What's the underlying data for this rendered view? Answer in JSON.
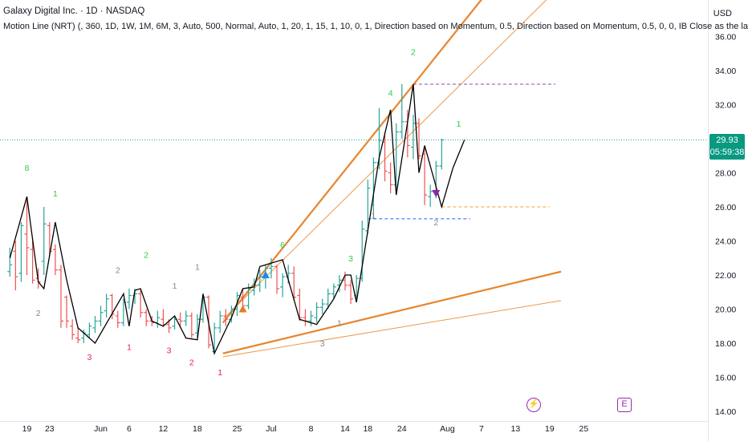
{
  "header": {
    "title": "Galaxy Digital Inc. · 1D · NASDAQ",
    "indicator": "Motion Line (NRT) (, 360, 1D, 1W, 1M, 6M, 3, Auto, 500, Normal, Auto, 1, 20, 1, 15, 1, 10, 0, 1, Direction based on Momentum, 0.5, Direction based on Momentum, 0.5, 0, 0, IB Close as the last Close)"
  },
  "currency": "USD",
  "price_badge": {
    "price": "29.93",
    "countdown": "05:59:38"
  },
  "events": {
    "earnings_icon": "lightning-icon",
    "dividend_icon": "dividend-e-icon"
  },
  "colors": {
    "up": "#26a69a",
    "down": "#ef5350",
    "motion_line": "#000000",
    "trend": "#e67e22",
    "label_green": "#2ecc40",
    "label_red": "#e91e63",
    "label_gray": "#888888",
    "purple_dash": "#8e44ad",
    "blue_dash": "#2962ff",
    "orange_dash": "#f0a030"
  },
  "chart_data": {
    "type": "ohlc",
    "y_ticks": [
      "14.00",
      "16.00",
      "18.00",
      "20.00",
      "22.00",
      "24.00",
      "26.00",
      "28.00",
      "30.00",
      "32.00",
      "34.00",
      "36.00"
    ],
    "ylim": [
      13.5,
      37
    ],
    "x_labels": [
      {
        "label": "19",
        "day": 1
      },
      {
        "label": "23",
        "day": 5
      },
      {
        "label": "Jun",
        "day": 14
      },
      {
        "label": "6",
        "day": 19
      },
      {
        "label": "12",
        "day": 25
      },
      {
        "label": "18",
        "day": 31
      },
      {
        "label": "25",
        "day": 38
      },
      {
        "label": "Jul",
        "day": 44
      },
      {
        "label": "8",
        "day": 51
      },
      {
        "label": "14",
        "day": 57
      },
      {
        "label": "18",
        "day": 61
      },
      {
        "label": "24",
        "day": 67
      },
      {
        "label": "Aug",
        "day": 75
      },
      {
        "label": "7",
        "day": 81
      },
      {
        "label": "13",
        "day": 87
      },
      {
        "label": "19",
        "day": 93
      },
      {
        "label": "25",
        "day": 99
      }
    ],
    "bars": [
      {
        "d": -2,
        "o": 22.2,
        "h": 23.6,
        "l": 21.9,
        "c": 22.6
      },
      {
        "d": -1,
        "o": 23.4,
        "h": 24.0,
        "l": 21.1,
        "c": 21.9
      },
      {
        "d": 0,
        "o": 22.1,
        "h": 25.1,
        "l": 21.6,
        "c": 24.9
      },
      {
        "d": 1,
        "o": 24.4,
        "h": 26.6,
        "l": 22.0,
        "c": 23.6
      },
      {
        "d": 2,
        "o": 23.5,
        "h": 24.0,
        "l": 21.5,
        "c": 21.7
      },
      {
        "d": 3,
        "o": 21.8,
        "h": 22.4,
        "l": 21.2,
        "c": 21.6
      },
      {
        "d": 4,
        "o": 22.8,
        "h": 26.0,
        "l": 22.0,
        "c": 25.0
      },
      {
        "d": 5,
        "o": 24.9,
        "h": 25.1,
        "l": 23.1,
        "c": 23.4
      },
      {
        "d": 6,
        "o": 23.5,
        "h": 23.8,
        "l": 22.0,
        "c": 22.3
      },
      {
        "d": 7,
        "o": 22.3,
        "h": 22.6,
        "l": 18.9,
        "c": 19.3
      },
      {
        "d": 8,
        "o": 20.7,
        "h": 20.8,
        "l": 18.9,
        "c": 19.3
      },
      {
        "d": 9,
        "o": 19.0,
        "h": 19.4,
        "l": 18.2,
        "c": 18.5
      },
      {
        "d": 10,
        "o": 18.3,
        "h": 18.9,
        "l": 18.0,
        "c": 18.2
      },
      {
        "d": 11,
        "o": 18.3,
        "h": 18.8,
        "l": 18.0,
        "c": 18.6
      },
      {
        "d": 12,
        "o": 18.5,
        "h": 19.2,
        "l": 18.3,
        "c": 19.0
      },
      {
        "d": 13,
        "o": 18.9,
        "h": 19.6,
        "l": 18.6,
        "c": 19.3
      },
      {
        "d": 14,
        "o": 19.3,
        "h": 20.2,
        "l": 19.0,
        "c": 19.8
      },
      {
        "d": 15,
        "o": 19.9,
        "h": 20.9,
        "l": 19.5,
        "c": 20.6
      },
      {
        "d": 16,
        "o": 20.8,
        "h": 20.9,
        "l": 19.4,
        "c": 19.7
      },
      {
        "d": 17,
        "o": 19.6,
        "h": 19.9,
        "l": 18.9,
        "c": 19.2
      },
      {
        "d": 18,
        "o": 19.2,
        "h": 20.6,
        "l": 19.0,
        "c": 20.4
      },
      {
        "d": 19,
        "o": 20.4,
        "h": 21.2,
        "l": 20.0,
        "c": 20.8
      },
      {
        "d": 20,
        "o": 20.8,
        "h": 21.2,
        "l": 20.3,
        "c": 20.9
      },
      {
        "d": 21,
        "o": 20.9,
        "h": 21.1,
        "l": 19.5,
        "c": 19.8
      },
      {
        "d": 22,
        "o": 19.8,
        "h": 20.0,
        "l": 19.0,
        "c": 19.3
      },
      {
        "d": 23,
        "o": 19.3,
        "h": 19.6,
        "l": 19.0,
        "c": 19.2
      },
      {
        "d": 24,
        "o": 19.2,
        "h": 19.9,
        "l": 18.9,
        "c": 19.5
      },
      {
        "d": 25,
        "o": 19.4,
        "h": 20.0,
        "l": 19.0,
        "c": 19.1
      },
      {
        "d": 26,
        "o": 19.1,
        "h": 19.4,
        "l": 18.6,
        "c": 18.9
      },
      {
        "d": 27,
        "o": 19.0,
        "h": 19.6,
        "l": 18.8,
        "c": 19.4
      },
      {
        "d": 28,
        "o": 19.4,
        "h": 19.8,
        "l": 19.0,
        "c": 19.3
      },
      {
        "d": 29,
        "o": 19.3,
        "h": 19.9,
        "l": 19.0,
        "c": 19.6
      },
      {
        "d": 30,
        "o": 19.6,
        "h": 19.8,
        "l": 18.3,
        "c": 18.5
      },
      {
        "d": 31,
        "o": 18.6,
        "h": 19.7,
        "l": 18.3,
        "c": 19.4
      },
      {
        "d": 32,
        "o": 19.4,
        "h": 20.9,
        "l": 19.2,
        "c": 20.7
      },
      {
        "d": 33,
        "o": 20.7,
        "h": 20.8,
        "l": 17.7,
        "c": 17.9
      },
      {
        "d": 34,
        "o": 17.5,
        "h": 19.2,
        "l": 17.4,
        "c": 18.9
      },
      {
        "d": 35,
        "o": 18.9,
        "h": 19.9,
        "l": 18.6,
        "c": 19.6
      },
      {
        "d": 36,
        "o": 19.6,
        "h": 20.0,
        "l": 19.0,
        "c": 19.4
      },
      {
        "d": 37,
        "o": 19.4,
        "h": 20.2,
        "l": 19.2,
        "c": 20.0
      },
      {
        "d": 38,
        "o": 20.0,
        "h": 21.0,
        "l": 19.6,
        "c": 20.8
      },
      {
        "d": 39,
        "o": 20.7,
        "h": 21.2,
        "l": 19.8,
        "c": 20.2
      },
      {
        "d": 40,
        "o": 20.2,
        "h": 21.5,
        "l": 20.0,
        "c": 21.2
      },
      {
        "d": 41,
        "o": 21.1,
        "h": 21.8,
        "l": 20.8,
        "c": 21.4
      },
      {
        "d": 42,
        "o": 21.4,
        "h": 22.3,
        "l": 21.0,
        "c": 21.9
      },
      {
        "d": 43,
        "o": 21.9,
        "h": 22.6,
        "l": 21.2,
        "c": 22.4
      },
      {
        "d": 44,
        "o": 22.4,
        "h": 23.0,
        "l": 21.8,
        "c": 22.5
      },
      {
        "d": 45,
        "o": 22.5,
        "h": 22.6,
        "l": 20.9,
        "c": 21.2
      },
      {
        "d": 46,
        "o": 21.3,
        "h": 22.1,
        "l": 20.7,
        "c": 21.9
      },
      {
        "d": 47,
        "o": 21.9,
        "h": 22.6,
        "l": 21.5,
        "c": 22.1
      },
      {
        "d": 48,
        "o": 22.1,
        "h": 22.5,
        "l": 20.5,
        "c": 20.7
      },
      {
        "d": 49,
        "o": 20.8,
        "h": 21.2,
        "l": 19.3,
        "c": 19.5
      },
      {
        "d": 50,
        "o": 19.5,
        "h": 20.0,
        "l": 19.0,
        "c": 19.3
      },
      {
        "d": 51,
        "o": 19.3,
        "h": 19.9,
        "l": 19.0,
        "c": 19.6
      },
      {
        "d": 52,
        "o": 19.5,
        "h": 20.4,
        "l": 19.2,
        "c": 20.1
      },
      {
        "d": 53,
        "o": 20.1,
        "h": 20.6,
        "l": 19.7,
        "c": 20.3
      },
      {
        "d": 54,
        "o": 20.3,
        "h": 21.2,
        "l": 20.0,
        "c": 20.9
      },
      {
        "d": 55,
        "o": 20.9,
        "h": 21.5,
        "l": 20.6,
        "c": 21.3
      },
      {
        "d": 56,
        "o": 21.4,
        "h": 22.0,
        "l": 21.0,
        "c": 21.7
      },
      {
        "d": 57,
        "o": 21.7,
        "h": 22.2,
        "l": 21.1,
        "c": 21.4
      },
      {
        "d": 58,
        "o": 21.4,
        "h": 21.7,
        "l": 20.3,
        "c": 20.6
      },
      {
        "d": 59,
        "o": 20.8,
        "h": 22.0,
        "l": 20.6,
        "c": 21.8
      },
      {
        "d": 60,
        "o": 21.8,
        "h": 25.2,
        "l": 21.6,
        "c": 24.7
      },
      {
        "d": 61,
        "o": 24.6,
        "h": 27.6,
        "l": 24.4,
        "c": 27.1
      },
      {
        "d": 62,
        "o": 26.1,
        "h": 28.9,
        "l": 25.3,
        "c": 28.6
      },
      {
        "d": 63,
        "o": 28.6,
        "h": 31.8,
        "l": 28.2,
        "c": 29.9
      },
      {
        "d": 64,
        "o": 29.8,
        "h": 30.4,
        "l": 27.5,
        "c": 28.1
      },
      {
        "d": 65,
        "o": 28.0,
        "h": 28.6,
        "l": 26.8,
        "c": 27.3
      },
      {
        "d": 66,
        "o": 27.3,
        "h": 30.9,
        "l": 27.0,
        "c": 30.4
      },
      {
        "d": 67,
        "o": 30.4,
        "h": 33.2,
        "l": 30.0,
        "c": 31.0
      },
      {
        "d": 68,
        "o": 31.0,
        "h": 31.7,
        "l": 28.9,
        "c": 29.6
      },
      {
        "d": 69,
        "o": 29.5,
        "h": 31.4,
        "l": 28.8,
        "c": 30.9
      },
      {
        "d": 70,
        "o": 30.9,
        "h": 31.2,
        "l": 28.8,
        "c": 29.0
      },
      {
        "d": 71,
        "o": 29.1,
        "h": 29.5,
        "l": 26.1,
        "c": 26.7
      },
      {
        "d": 72,
        "o": 26.6,
        "h": 27.3,
        "l": 26.0,
        "c": 26.9
      },
      {
        "d": 73,
        "o": 26.9,
        "h": 28.7,
        "l": 26.5,
        "c": 28.4
      },
      {
        "d": 74,
        "o": 28.4,
        "h": 30.0,
        "l": 28.2,
        "c": 29.93
      }
    ],
    "motion_line": [
      [
        -2,
        23.0
      ],
      [
        1,
        26.6
      ],
      [
        3,
        21.6
      ],
      [
        4,
        21.2
      ],
      [
        6,
        25.1
      ],
      [
        8,
        21.7
      ],
      [
        10,
        18.9
      ],
      [
        13,
        18.0
      ],
      [
        18,
        20.9
      ],
      [
        19,
        19.0
      ],
      [
        20,
        21.1
      ],
      [
        21,
        21.2
      ],
      [
        23,
        19.3
      ],
      [
        25,
        19.0
      ],
      [
        27,
        19.6
      ],
      [
        29,
        18.3
      ],
      [
        31,
        18.2
      ],
      [
        32,
        20.9
      ],
      [
        34,
        17.4
      ],
      [
        37,
        19.5
      ],
      [
        39,
        21.2
      ],
      [
        41,
        21.3
      ],
      [
        42,
        22.5
      ],
      [
        46,
        22.9
      ],
      [
        49,
        19.4
      ],
      [
        52,
        19.1
      ],
      [
        55,
        20.6
      ],
      [
        57,
        22.0
      ],
      [
        58,
        22.0
      ],
      [
        59,
        20.4
      ],
      [
        61,
        24.6
      ],
      [
        63,
        28.9
      ],
      [
        65,
        31.7
      ],
      [
        66,
        26.7
      ],
      [
        68,
        31.0
      ],
      [
        69,
        33.2
      ],
      [
        70,
        28.0
      ],
      [
        71,
        29.6
      ],
      [
        74,
        26.0
      ],
      [
        76,
        28.3
      ],
      [
        78,
        29.93
      ]
    ],
    "trend_lines": [
      {
        "from": [
          35.5,
          19.2
        ],
        "to": [
          95,
          44.0
        ],
        "width": 2
      },
      {
        "from": [
          35.5,
          17.4
        ],
        "to": [
          95,
          22.2
        ],
        "width": 2
      },
      {
        "from": [
          35.5,
          19.4
        ],
        "to": [
          95,
          39.0
        ],
        "width": 1
      },
      {
        "from": [
          35.5,
          17.2
        ],
        "to": [
          95,
          20.5
        ],
        "width": 1
      }
    ],
    "levels": [
      {
        "y": 33.2,
        "from": 69,
        "to": 94,
        "color": "purple"
      },
      {
        "y": 25.3,
        "from": 61,
        "to": 79,
        "color": "blue"
      },
      {
        "y": 26.0,
        "from": 74,
        "to": 93,
        "color": "orange"
      }
    ],
    "last_price": 29.93,
    "swing_labels": [
      {
        "text": "8",
        "d": 1,
        "y": 28.3,
        "c": "green"
      },
      {
        "text": "2",
        "d": 3,
        "y": 19.8,
        "c": "gray"
      },
      {
        "text": "1",
        "d": 6,
        "y": 26.8,
        "c": "green"
      },
      {
        "text": "3",
        "d": 12,
        "y": 17.2,
        "c": "red"
      },
      {
        "text": "2",
        "d": 17,
        "y": 22.3,
        "c": "gray"
      },
      {
        "text": "1",
        "d": 19,
        "y": 17.8,
        "c": "red"
      },
      {
        "text": "2",
        "d": 22,
        "y": 23.2,
        "c": "green"
      },
      {
        "text": "3",
        "d": 26,
        "y": 17.6,
        "c": "red"
      },
      {
        "text": "1",
        "d": 27,
        "y": 21.4,
        "c": "gray"
      },
      {
        "text": "2",
        "d": 30,
        "y": 16.9,
        "c": "red"
      },
      {
        "text": "1",
        "d": 31,
        "y": 22.5,
        "c": "gray"
      },
      {
        "text": "1",
        "d": 35,
        "y": 16.3,
        "c": "red"
      },
      {
        "text": "6",
        "d": 46,
        "y": 23.8,
        "c": "green"
      },
      {
        "text": "3",
        "d": 53,
        "y": 18.0,
        "c": "gray"
      },
      {
        "text": "1",
        "d": 56,
        "y": 19.2,
        "c": "gray"
      },
      {
        "text": "3",
        "d": 58,
        "y": 23.0,
        "c": "green"
      },
      {
        "text": "1",
        "d": 62,
        "y": 25.5,
        "c": "gray"
      },
      {
        "text": "4",
        "d": 65,
        "y": 32.7,
        "c": "green"
      },
      {
        "text": "2",
        "d": 69,
        "y": 35.1,
        "c": "green"
      },
      {
        "text": "2",
        "d": 73,
        "y": 25.1,
        "c": "gray"
      },
      {
        "text": "1",
        "d": 77,
        "y": 30.9,
        "c": "green"
      }
    ],
    "markers": [
      {
        "type": "up-triangle",
        "d": 39,
        "y": 20.0,
        "c": "#e67e22"
      },
      {
        "type": "up-triangle",
        "d": 43,
        "y": 22.0,
        "c": "#1e88e5"
      },
      {
        "type": "down-triangle",
        "d": 73,
        "y": 26.8,
        "c": "#8e24aa"
      }
    ]
  }
}
